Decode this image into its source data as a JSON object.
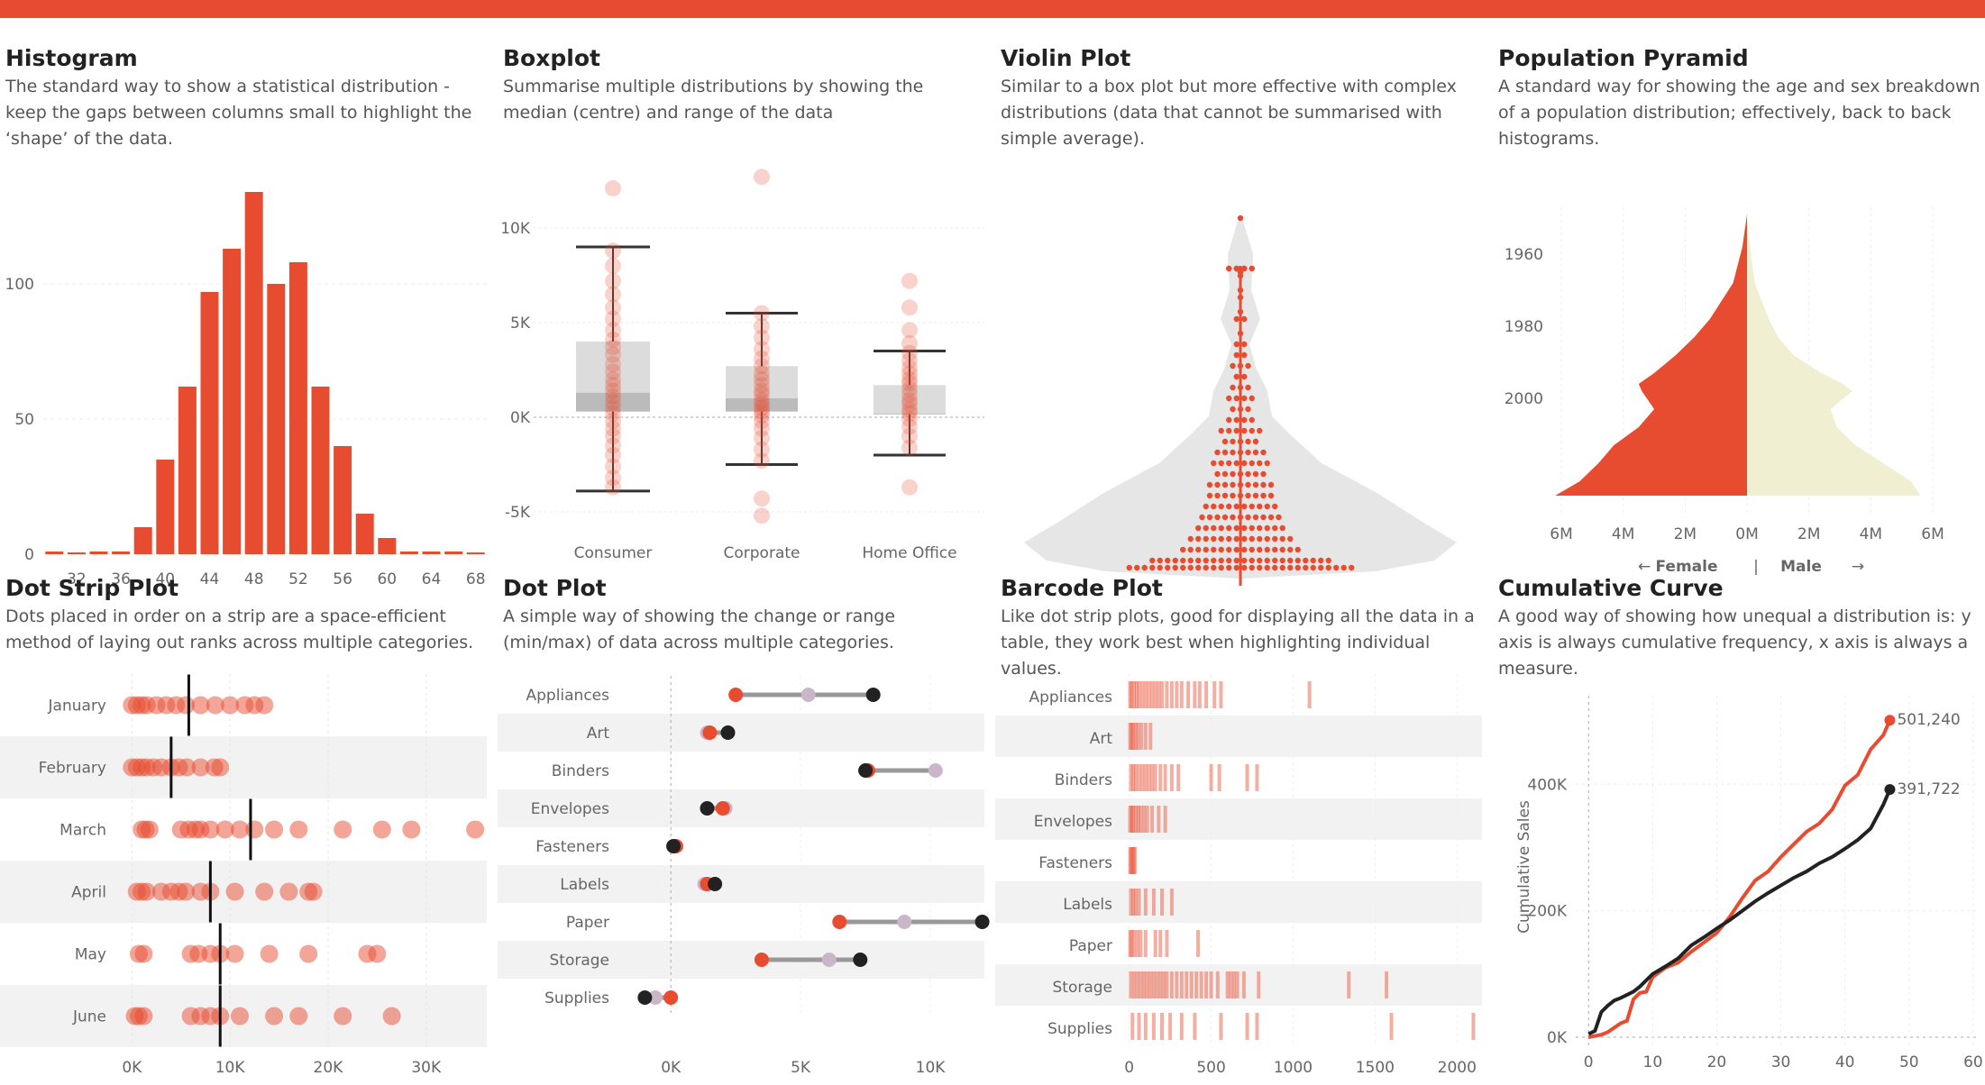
{
  "colors": {
    "accent": "#e84c30",
    "light": "#f0efd2",
    "dark": "#222222",
    "lilac": "#c9b7c9",
    "band": "#f2f2f2",
    "grey": "#999999"
  },
  "panels": [
    {
      "title": "Histogram",
      "desc": "The standard way to show a statistical distribution - keep the gaps between columns small to highlight the ‘shape’ of the data."
    },
    {
      "title": "Boxplot",
      "desc": "Summarise multiple distributions by showing the median (centre) and range of the data"
    },
    {
      "title": "Violin Plot",
      "desc": "Similar to a box plot but more effective with complex distributions (data that cannot be summarised with simple average)."
    },
    {
      "title": "Population Pyramid",
      "desc": "A standard way for showing the age and sex breakdown of a population distribution; effectively, back to back histograms."
    },
    {
      "title": "Dot Strip Plot",
      "desc": "Dots placed in order on a strip are a space-efficient method of laying out ranks across multiple categories."
    },
    {
      "title": "Dot Plot",
      "desc": "A simple way of showing the change or range (min/max) of data across multiple categories."
    },
    {
      "title": "Barcode Plot",
      "desc": "Like dot strip plots, good for displaying all the data in a table, they work best when highlighting individual values."
    },
    {
      "title": "Cumulative Curve",
      "desc": "A good way of showing how unequal a distribution is: y axis is always cumulative frequency, x axis is always a measure."
    }
  ],
  "pyramid_legend": {
    "left": "Female",
    "right": "Male",
    "sep": "|"
  },
  "chart_data": [
    {
      "type": "bar",
      "categories": [
        30,
        32,
        34,
        36,
        38,
        40,
        42,
        44,
        46,
        48,
        50,
        52,
        54,
        56,
        58,
        60,
        62,
        64,
        66,
        68
      ],
      "values": [
        1,
        0,
        1,
        1,
        10,
        35,
        62,
        97,
        113,
        134,
        100,
        108,
        62,
        40,
        15,
        6,
        1,
        1,
        1,
        0
      ],
      "x_ticks": [
        32,
        36,
        40,
        44,
        48,
        52,
        56,
        60,
        64,
        68
      ],
      "y_ticks": [
        0,
        50,
        100
      ],
      "ylim": [
        0,
        140
      ]
    },
    {
      "type": "box",
      "categories": [
        "Consumer",
        "Corporate",
        "Home Office"
      ],
      "y_ticks": [
        {
          "v": -5000,
          "l": "-5K"
        },
        {
          "v": 0,
          "l": "0K"
        },
        {
          "v": 5000,
          "l": "5K"
        },
        {
          "v": 10000,
          "l": "10K"
        }
      ],
      "ylim": [
        -7000,
        13000
      ],
      "boxes": [
        {
          "min": -3900,
          "q1": 300,
          "median": 1300,
          "q3": 4000,
          "max": 9000
        },
        {
          "min": -2500,
          "q1": 300,
          "median": 1000,
          "q3": 2700,
          "max": 5500
        },
        {
          "min": -2000,
          "q1": 200,
          "median": 200,
          "q3": 1700,
          "max": 3500
        }
      ],
      "points": [
        [
          12100,
          8800,
          8000,
          7200,
          6500,
          5800,
          5200,
          4600,
          4100,
          3700,
          3300,
          2800,
          2400,
          2000,
          1700,
          1400,
          1100,
          800,
          500,
          200,
          -200,
          -600,
          -1000,
          -1500,
          -2000,
          -2600,
          -3200,
          -3700
        ],
        [
          12700,
          5500,
          4800,
          4200,
          3600,
          3100,
          2700,
          2300,
          2000,
          1700,
          1400,
          1200,
          900,
          700,
          500,
          300,
          100,
          -200,
          -600,
          -1100,
          -1700,
          -2300,
          -4300,
          -5200
        ],
        [
          7200,
          5800,
          4600,
          3900,
          3400,
          3000,
          2600,
          2300,
          2000,
          1800,
          1500,
          1200,
          900,
          700,
          400,
          200,
          -100,
          -500,
          -1000,
          -1600,
          -3700
        ]
      ]
    },
    {
      "type": "violin",
      "points_y": [
        1.0,
        0.86,
        0.86,
        0.85,
        0.84,
        0.8,
        0.78,
        0.74,
        0.72,
        0.68,
        0.65,
        0.62,
        0.59,
        0.56,
        0.53,
        0.5,
        0.47,
        0.44,
        0.41,
        0.38,
        0.35,
        0.32,
        0.29,
        0.26,
        0.23,
        0.2,
        0.17,
        0.14,
        0.11,
        0.08,
        0.05,
        0.03
      ],
      "dots_per_row": [
        1,
        4,
        4,
        1,
        1,
        1,
        1,
        1,
        2,
        1,
        2,
        2,
        3,
        2,
        3,
        4,
        3,
        4,
        6,
        5,
        7,
        8,
        7,
        9,
        9,
        10,
        11,
        12,
        14,
        16,
        24,
        30
      ]
    },
    {
      "type": "pyramid",
      "y_ticks": [
        1960,
        1980,
        2000
      ],
      "x_ticks": [
        {
          "v": -6,
          "l": "6M"
        },
        {
          "v": -4,
          "l": "4M"
        },
        {
          "v": -2,
          "l": "2M"
        },
        {
          "v": 0,
          "l": "0M"
        },
        {
          "v": 2,
          "l": "2M"
        },
        {
          "v": 4,
          "l": "4M"
        },
        {
          "v": 6,
          "l": "6M"
        }
      ],
      "years": [
        1941,
        1950,
        1960,
        1970,
        1975,
        1980,
        1985,
        1988,
        1990,
        1995,
        2000,
        2005,
        2010,
        2015,
        2019
      ],
      "female": [
        0,
        0.15,
        0.45,
        1.2,
        1.7,
        2.3,
        3.0,
        3.5,
        3.4,
        3.0,
        3.5,
        4.3,
        4.8,
        5.4,
        6.2
      ],
      "male": [
        0,
        0.1,
        0.25,
        0.7,
        1.0,
        1.5,
        2.4,
        3.1,
        3.4,
        2.7,
        2.9,
        3.5,
        4.4,
        5.3,
        5.6
      ]
    },
    {
      "type": "scatter",
      "categories": [
        "January",
        "February",
        "March",
        "April",
        "May",
        "June"
      ],
      "x_ticks": [
        {
          "v": 0,
          "l": "0K"
        },
        {
          "v": 10000,
          "l": "10K"
        },
        {
          "v": 20000,
          "l": "20K"
        },
        {
          "v": 30000,
          "l": "30K"
        }
      ],
      "xlim": [
        -1500,
        36000
      ],
      "values": [
        [
          0,
          500,
          1000,
          1500,
          2500,
          3500,
          4500,
          5500,
          7000,
          8500,
          10000,
          11500,
          12500,
          13500
        ],
        [
          0,
          500,
          1000,
          1500,
          2200,
          3000,
          4000,
          4800,
          5600,
          7000,
          8400,
          9000
        ],
        [
          1000,
          1400,
          1800,
          5000,
          5800,
          6500,
          7000,
          8000,
          9500,
          11000,
          12500,
          14500,
          17000,
          21500,
          25500,
          28500,
          35000
        ],
        [
          500,
          1000,
          1500,
          3000,
          4000,
          4800,
          5500,
          7000,
          8000,
          10500,
          13500,
          16000,
          18000,
          18500
        ],
        [
          700,
          1200,
          6000,
          6800,
          8000,
          9000,
          10500,
          14000,
          18000,
          24000,
          25000
        ],
        [
          300,
          700,
          1200,
          6000,
          7000,
          8000,
          9000,
          11000,
          14500,
          17000,
          21500,
          26500
        ]
      ],
      "medians": [
        5800,
        4000,
        12100,
        8000,
        9000,
        9000
      ]
    },
    {
      "type": "dot",
      "categories": [
        "Appliances",
        "Art",
        "Binders",
        "Envelopes",
        "Fasteners",
        "Labels",
        "Paper",
        "Storage",
        "Supplies"
      ],
      "x_ticks": [
        {
          "v": 0,
          "l": "0K"
        },
        {
          "v": 5000,
          "l": "5K"
        },
        {
          "v": 10000,
          "l": "10K"
        }
      ],
      "xlim": [
        -1500,
        12500
      ],
      "series": [
        [
          2500,
          1500,
          7600,
          2000,
          200,
          1400,
          6500,
          3500,
          0
        ],
        [
          5300,
          1400,
          10200,
          2100,
          200,
          1300,
          9000,
          6100,
          -600
        ],
        [
          7800,
          2200,
          7500,
          1400,
          100,
          1700,
          12000,
          7300,
          -1000
        ]
      ]
    },
    {
      "type": "barcode",
      "categories": [
        "Appliances",
        "Art",
        "Binders",
        "Envelopes",
        "Fasteners",
        "Labels",
        "Paper",
        "Storage",
        "Supplies"
      ],
      "x_ticks": [
        0,
        500,
        1000,
        1500,
        2000
      ],
      "xlim": [
        -20,
        2180
      ],
      "values": [
        [
          5,
          15,
          30,
          45,
          60,
          80,
          100,
          120,
          140,
          160,
          180,
          200,
          230,
          260,
          290,
          320,
          360,
          400,
          430,
          470,
          520,
          560,
          1100
        ],
        [
          5,
          15,
          25,
          40,
          55,
          75,
          100,
          130
        ],
        [
          10,
          25,
          40,
          60,
          80,
          100,
          120,
          140,
          160,
          190,
          220,
          260,
          300,
          500,
          550,
          720,
          780
        ],
        [
          5,
          15,
          25,
          40,
          55,
          70,
          90,
          110,
          140,
          180,
          220
        ],
        [
          5,
          12,
          20,
          28,
          36
        ],
        [
          10,
          25,
          40,
          60,
          100,
          150,
          200,
          260
        ],
        [
          5,
          15,
          30,
          50,
          70,
          100,
          160,
          190,
          230,
          420
        ],
        [
          10,
          30,
          50,
          70,
          90,
          110,
          130,
          150,
          170,
          190,
          210,
          230,
          260,
          290,
          320,
          350,
          380,
          410,
          440,
          470,
          500,
          540,
          600,
          620,
          640,
          660,
          700,
          790,
          1340,
          1570
        ],
        [
          20,
          60,
          100,
          150,
          200,
          250,
          320,
          400,
          560,
          720,
          780,
          1600,
          2100
        ]
      ]
    },
    {
      "type": "line",
      "xlabel": "Months since First Purchase",
      "ylabel": "Cumulative Sales",
      "x_ticks": [
        0,
        10,
        20,
        30,
        40,
        50,
        60
      ],
      "y_ticks": [
        {
          "v": 0,
          "l": "0K"
        },
        {
          "v": 200000,
          "l": "200K"
        },
        {
          "v": 400000,
          "l": "400K"
        }
      ],
      "xlim": [
        -2,
        61
      ],
      "ylim": [
        -10000,
        540000
      ],
      "series": [
        {
          "label": "501,240",
          "x": [
            0,
            1,
            2,
            3,
            4,
            5,
            6,
            7,
            8,
            9,
            10,
            12,
            14,
            16,
            18,
            20,
            22,
            24,
            26,
            28,
            30,
            32,
            34,
            36,
            38,
            40,
            42,
            44,
            46,
            47
          ],
          "y": [
            0,
            2000,
            4000,
            8000,
            15000,
            22000,
            26000,
            60000,
            70000,
            72000,
            95000,
            110000,
            118000,
            135000,
            150000,
            165000,
            190000,
            220000,
            248000,
            262000,
            285000,
            305000,
            325000,
            338000,
            360000,
            398000,
            415000,
            455000,
            478000,
            501240
          ]
        },
        {
          "label": "391,722",
          "x": [
            0,
            1,
            2,
            3,
            4,
            5,
            6,
            7,
            8,
            9,
            10,
            12,
            14,
            16,
            18,
            20,
            22,
            24,
            26,
            28,
            30,
            32,
            34,
            36,
            38,
            40,
            42,
            44,
            46,
            47
          ],
          "y": [
            5000,
            10000,
            40000,
            50000,
            58000,
            62000,
            67000,
            72000,
            80000,
            90000,
            100000,
            112000,
            125000,
            145000,
            158000,
            172000,
            185000,
            200000,
            215000,
            228000,
            240000,
            252000,
            262000,
            275000,
            285000,
            298000,
            312000,
            330000,
            368000,
            391722
          ]
        }
      ]
    }
  ]
}
